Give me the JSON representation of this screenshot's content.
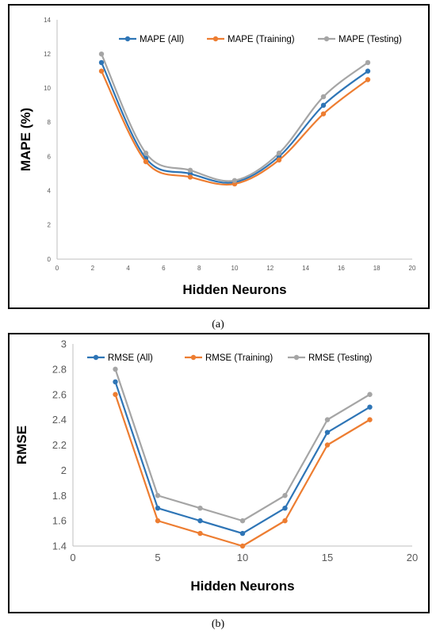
{
  "chart_data": [
    {
      "type": "line",
      "panel": "(a)",
      "title": "",
      "xlabel": "Hidden Neurons",
      "ylabel": "MAPE (%)",
      "xlim": [
        0,
        20
      ],
      "ylim": [
        0,
        14
      ],
      "xticks": [
        "0",
        "2",
        "4",
        "6",
        "8",
        "10",
        "12",
        "14",
        "16",
        "18",
        "20"
      ],
      "yticks": [
        "0",
        "2",
        "4",
        "6",
        "8",
        "10",
        "12",
        "14"
      ],
      "smooth": true,
      "grid": false,
      "legend_position": "top",
      "x": [
        2.5,
        5,
        7.5,
        10,
        12.5,
        15,
        17.5
      ],
      "series": [
        {
          "name": "MAPE (All)",
          "color": "#2E75B6",
          "values": [
            11.5,
            5.9,
            5.0,
            4.5,
            6.0,
            9.0,
            11.0
          ]
        },
        {
          "name": "MAPE (Training)",
          "color": "#ED7D31",
          "values": [
            11.0,
            5.7,
            4.8,
            4.4,
            5.8,
            8.5,
            10.5
          ]
        },
        {
          "name": "MAPE (Testing)",
          "color": "#A5A5A5",
          "values": [
            12.0,
            6.2,
            5.2,
            4.6,
            6.2,
            9.5,
            11.5
          ]
        }
      ]
    },
    {
      "type": "line",
      "panel": "(b)",
      "title": "",
      "xlabel": "Hidden Neurons",
      "ylabel": "RMSE",
      "xlim": [
        0,
        20
      ],
      "ylim": [
        1.4,
        3.0
      ],
      "xticks": [
        "0",
        "5",
        "10",
        "15",
        "20"
      ],
      "yticks": [
        "1.4",
        "1.6",
        "1.8",
        "2",
        "2.2",
        "2.4",
        "2.6",
        "2.8",
        "3"
      ],
      "smooth": false,
      "grid": false,
      "legend_position": "top",
      "x": [
        2.5,
        5,
        7.5,
        10,
        12.5,
        15,
        17.5
      ],
      "series": [
        {
          "name": "RMSE (All)",
          "color": "#2E75B6",
          "values": [
            2.7,
            1.7,
            1.6,
            1.5,
            1.7,
            2.3,
            2.5
          ]
        },
        {
          "name": "RMSE (Training)",
          "color": "#ED7D31",
          "values": [
            2.6,
            1.6,
            1.5,
            1.4,
            1.6,
            2.2,
            2.4
          ]
        },
        {
          "name": "RMSE (Testing)",
          "color": "#A5A5A5",
          "values": [
            2.8,
            1.8,
            1.7,
            1.6,
            1.8,
            2.4,
            2.6
          ]
        }
      ]
    }
  ]
}
